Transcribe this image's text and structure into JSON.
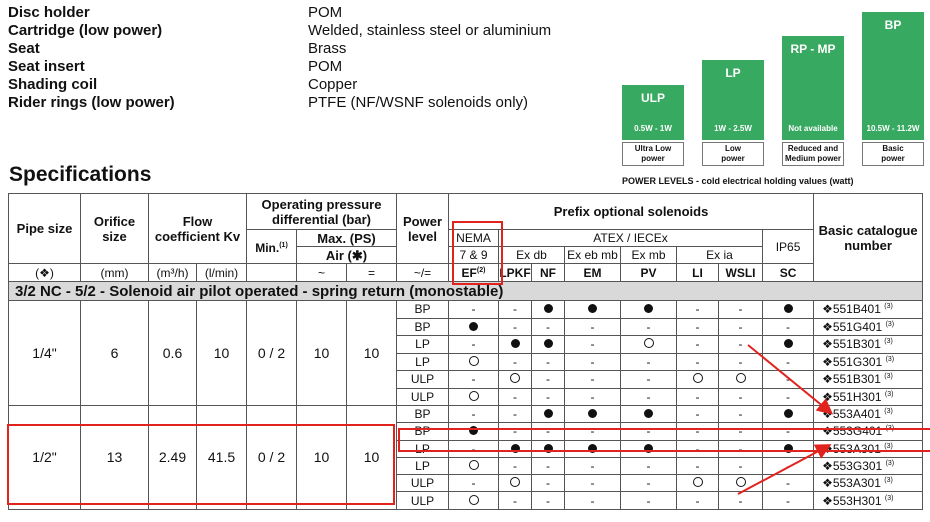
{
  "materials": [
    {
      "name": "Disc holder",
      "value": "POM"
    },
    {
      "name": "Cartridge (low power)",
      "value": "Welded, stainless steel or aluminium"
    },
    {
      "name": "Seat",
      "value": "Brass"
    },
    {
      "name": "Seat insert",
      "value": "POM"
    },
    {
      "name": "Shading coil",
      "value": "Copper"
    },
    {
      "name": "Rider rings (low power)",
      "value": "PTFE (NF/WSNF solenoids only)"
    }
  ],
  "power_levels": {
    "caption": "POWER LEVELS - cold electrical holding values (watt)",
    "items": [
      {
        "label": "ULP",
        "watts": "0.5W - 1W",
        "desc1": "Ultra Low",
        "desc2": "power"
      },
      {
        "label": "LP",
        "watts": "1W - 2.5W",
        "desc1": "Low",
        "desc2": "power"
      },
      {
        "label": "RP - MP",
        "watts": "Not available",
        "desc1": "Reduced and",
        "desc2": "Medium power"
      },
      {
        "label": "BP",
        "watts": "10.5W - 11.2W",
        "desc1": "Basic",
        "desc2": "power"
      }
    ]
  },
  "specs": {
    "title": "Specifications",
    "headers": {
      "pipe_size": "Pipe size",
      "orifice_size": "Orifice size",
      "flow": "Flow coefficient Kv",
      "op_pressure": "Operating pressure differential (bar)",
      "min": "Min.",
      "min_note": "(1)",
      "max": "Max. (PS)",
      "air": "Air (✱)",
      "power_level": "Power level",
      "prefix": "Prefix optional solenoids",
      "nema": "NEMA",
      "nema_sub": "7 & 9",
      "atex": "ATEX / IECEx",
      "ex_db": "Ex db",
      "ex_eb_mb": "Ex eb mb",
      "ex_mb": "Ex mb",
      "ex_ia": "Ex ia",
      "ip65": "IP65",
      "basic": "Basic catalogue number"
    },
    "units": [
      "(❖)",
      "(mm)",
      "(m³/h)",
      "(l/min)",
      "",
      "~",
      "=",
      "~/="
    ],
    "sol_codes": [
      "EF",
      "LPKF",
      "NF",
      "EM",
      "PV",
      "LI",
      "WSLI",
      "SC"
    ],
    "ef_note": "(2)",
    "section": "3/2 NC - 5/2 - Solenoid air pilot operated - spring return (monostable)",
    "groups": [
      {
        "pipe": "1/4\"",
        "orifice": "6",
        "m3h": "0.6",
        "lmin": "10",
        "min": "0 / 2",
        "ac": "10",
        "dc": "10",
        "rows": [
          {
            "power": "BP",
            "s": [
              "-",
              "-",
              "●",
              "●",
              "●",
              "-",
              "-",
              "●"
            ],
            "cat": "❖551B401",
            "note": "(3)"
          },
          {
            "power": "BP",
            "s": [
              "●",
              "-",
              "-",
              "-",
              "-",
              "-",
              "-",
              "-"
            ],
            "cat": "❖551G401",
            "note": "(3)"
          },
          {
            "power": "LP",
            "s": [
              "-",
              "●",
              "●",
              "-",
              "○",
              "-",
              "-",
              "●"
            ],
            "cat": "❖551B301",
            "note": "(3)"
          },
          {
            "power": "LP",
            "s": [
              "○",
              "-",
              "-",
              "-",
              "-",
              "-",
              "-",
              "-"
            ],
            "cat": "❖551G301",
            "note": "(3)"
          },
          {
            "power": "ULP",
            "s": [
              "-",
              "○",
              "-",
              "-",
              "-",
              "○",
              "○",
              "-"
            ],
            "cat": "❖551B301",
            "note": "(3)"
          },
          {
            "power": "ULP",
            "s": [
              "○",
              "-",
              "-",
              "-",
              "-",
              "-",
              "-",
              "-"
            ],
            "cat": "❖551H301",
            "note": "(3)"
          }
        ]
      },
      {
        "pipe": "1/2\"",
        "orifice": "13",
        "m3h": "2.49",
        "lmin": "41.5",
        "min": "0 / 2",
        "ac": "10",
        "dc": "10",
        "rows": [
          {
            "power": "BP",
            "s": [
              "-",
              "-",
              "●",
              "●",
              "●",
              "-",
              "-",
              "●"
            ],
            "cat": "❖553A401",
            "note": "(3)"
          },
          {
            "power": "BP",
            "s": [
              "●",
              "-",
              "-",
              "-",
              "-",
              "-",
              "-",
              "-"
            ],
            "cat": "❖553G401",
            "note": "(3)"
          },
          {
            "power": "LP",
            "s": [
              "-",
              "●",
              "●",
              "●",
              "●",
              "-",
              "-",
              "●"
            ],
            "cat": "❖553A301",
            "note": "(3)"
          },
          {
            "power": "LP",
            "s": [
              "○",
              "-",
              "-",
              "-",
              "-",
              "-",
              "-",
              "-"
            ],
            "cat": "❖553G301",
            "note": "(3)"
          },
          {
            "power": "ULP",
            "s": [
              "-",
              "○",
              "-",
              "-",
              "-",
              "○",
              "○",
              "-"
            ],
            "cat": "❖553A301",
            "note": "(3)"
          },
          {
            "power": "ULP",
            "s": [
              "○",
              "-",
              "-",
              "-",
              "-",
              "-",
              "-",
              "-"
            ],
            "cat": "❖553H301",
            "note": "(3)"
          }
        ]
      }
    ]
  },
  "colors": {
    "accent_green": "#37a960",
    "highlight_red": "#e1231e",
    "section_gray": "#d9d9d9"
  }
}
